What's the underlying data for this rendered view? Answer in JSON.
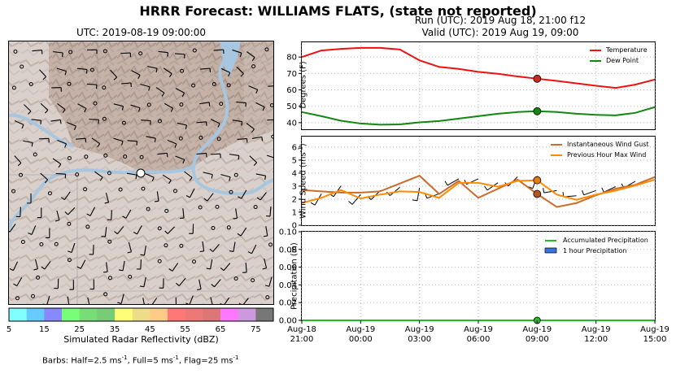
{
  "figure": {
    "suptitle": "HRRR Forecast: WILLIAMS FLATS, (state not reported)",
    "run": "Run (UTC): 2019 Aug 18, 21:00 f12",
    "valid": "Valid (UTC): 2019 Aug 19, 09:00",
    "map_title": "UTC: 2019-08-19 09:00:00",
    "colorbar_label": "Simulated Radar Reflectivity (dBZ)",
    "barbs_note_prefix": "Barbs: Half=2.5 ms",
    "barbs_note_mid1": ", Full=5 ms",
    "barbs_note_mid2": ", Flag=25 ms",
    "barbs_note_sup": "-1",
    "colors": {
      "temperature": "#ee1111",
      "dewpoint": "#118811",
      "gust": "#cc6a2b",
      "maxwind": "#ff8c00",
      "accum": "#22bb22",
      "hourly": "#3377dd",
      "marker_temp": "#cc2a1a",
      "marker_gust": "#b5561d",
      "marker_max": "#e07b0f"
    }
  },
  "colorbar": {
    "colors": [
      "#7fffff",
      "#66ccff",
      "#8888ff",
      "#77ff77",
      "#77dd77",
      "#77cc77",
      "#ffff77",
      "#eedd88",
      "#ffcc88",
      "#ff7777",
      "#ee7777",
      "#dd7777",
      "#ff77ff",
      "#cc99dd",
      "#777777"
    ],
    "ticks": [
      "5",
      "15",
      "25",
      "35",
      "45",
      "55",
      "65",
      "75"
    ]
  },
  "chart_data": [
    {
      "type": "line",
      "panel": "temperature",
      "ylabel": "Degrees (F)",
      "ylim": [
        36,
        89
      ],
      "yticks": [
        "40",
        "50",
        "60",
        "70",
        "80"
      ],
      "x_hours": [
        0,
        1,
        2,
        3,
        4,
        5,
        6,
        7,
        8,
        9,
        10,
        11,
        12,
        13,
        14,
        15,
        16,
        17,
        18
      ],
      "series": [
        {
          "name": "Temperature",
          "values": [
            80,
            84,
            85,
            85.6,
            85.6,
            84.6,
            78,
            74,
            72.8,
            71,
            69.8,
            68.2,
            66.8,
            65.5,
            64,
            62.5,
            61.2,
            63.2,
            66.3
          ]
        },
        {
          "name": "Dew Point",
          "values": [
            46.5,
            44,
            41.2,
            39.5,
            38.8,
            39,
            40.2,
            41,
            42.5,
            44,
            45.5,
            46.5,
            47,
            46.5,
            45.5,
            44.8,
            44.5,
            46,
            49.5
          ]
        }
      ],
      "legend": "top-right",
      "marker_x": 12
    },
    {
      "type": "line",
      "panel": "wind",
      "ylabel": "Wind Speed (ms",
      "ylabel_sup": "-1",
      "ylabel_end": ")",
      "ylim": [
        0,
        6.8
      ],
      "yticks": [
        "0",
        "1",
        "2",
        "3",
        "4",
        "5",
        "6"
      ],
      "x_hours": [
        0,
        1,
        2,
        3,
        4,
        5,
        6,
        7,
        8,
        9,
        10,
        11,
        12,
        13,
        14,
        15,
        16,
        17,
        18
      ],
      "series": [
        {
          "name": "Instantaneous Wind Gust",
          "values": [
            2.7,
            2.6,
            2.5,
            2.5,
            2.6,
            3.2,
            3.8,
            2.4,
            3.4,
            2.1,
            2.8,
            3.5,
            2.4,
            1.4,
            1.7,
            2.3,
            2.8,
            3.1,
            3.7
          ]
        },
        {
          "name": "Previous Hour Max Wind",
          "values": [
            1.7,
            2.1,
            2.7,
            2.05,
            2.35,
            2.6,
            2.55,
            2.1,
            3.25,
            3.25,
            2.95,
            3.4,
            3.45,
            2.35,
            1.95,
            2.35,
            2.65,
            3.05,
            3.5
          ]
        }
      ],
      "legend": "top-right",
      "marker_x": 12
    },
    {
      "type": "bar",
      "panel": "precipitation",
      "ylabel": "Precipitation (in)",
      "ylim": [
        0,
        0.1
      ],
      "yticks": [
        "0.00",
        "0.02",
        "0.04",
        "0.06",
        "0.08",
        "0.10"
      ],
      "series": [
        {
          "name": "Accumulated Precipitation",
          "values": [
            0,
            0,
            0,
            0,
            0,
            0,
            0,
            0,
            0,
            0,
            0,
            0,
            0,
            0,
            0,
            0,
            0,
            0,
            0
          ]
        },
        {
          "name": "1 hour Precipitation",
          "values": [
            0,
            0,
            0,
            0,
            0,
            0,
            0,
            0,
            0,
            0,
            0,
            0,
            0,
            0,
            0,
            0,
            0,
            0,
            0
          ]
        }
      ],
      "legend": "top-right",
      "marker_x": 12
    }
  ],
  "xaxis": {
    "ticks": [
      {
        "hour": 0,
        "date": "Aug-18",
        "time": "21:00"
      },
      {
        "hour": 3,
        "date": "Aug-19",
        "time": "00:00"
      },
      {
        "hour": 6,
        "date": "Aug-19",
        "time": "03:00"
      },
      {
        "hour": 9,
        "date": "Aug-19",
        "time": "06:00"
      },
      {
        "hour": 12,
        "date": "Aug-19",
        "time": "09:00"
      },
      {
        "hour": 15,
        "date": "Aug-19",
        "time": "12:00"
      },
      {
        "hour": 18,
        "date": "Aug-19",
        "time": "15:00"
      }
    ]
  }
}
